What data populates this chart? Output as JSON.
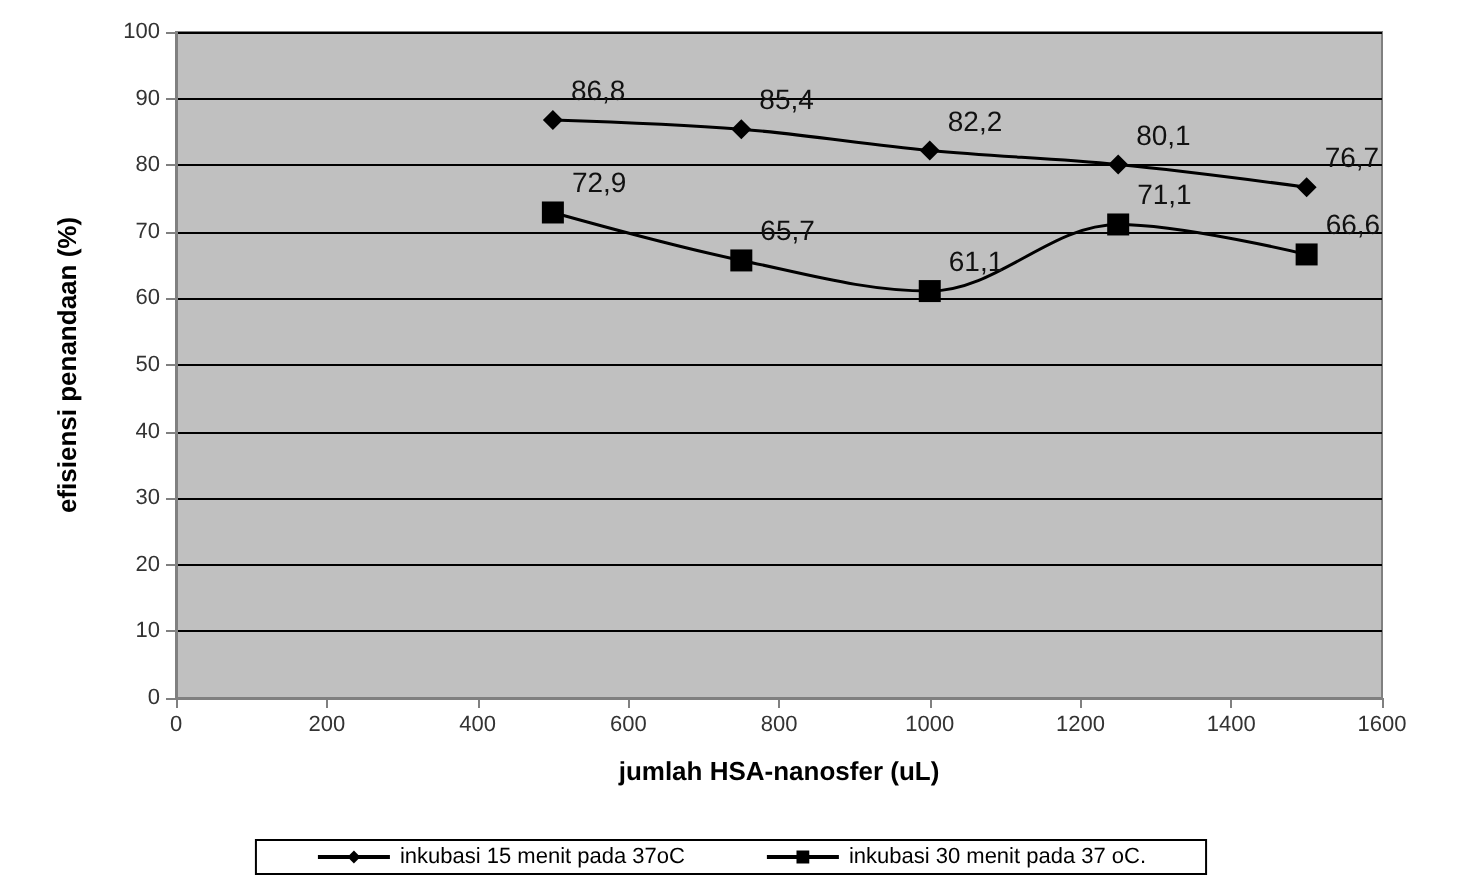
{
  "chart_data": {
    "type": "line",
    "xlabel": "jumlah HSA-nanosfer (uL)",
    "ylabel": "efisiensi penandaan (%)",
    "x": [
      500,
      750,
      1000,
      1250,
      1500
    ],
    "series": [
      {
        "name": "inkubasi 15 menit pada 37oC",
        "color": "#000000",
        "marker": "diamond",
        "values": [
          86.8,
          85.4,
          82.2,
          80.1,
          76.7
        ],
        "value_labels": [
          "86,8",
          "85,4",
          "82,2",
          "80,1",
          "76,7"
        ]
      },
      {
        "name": "inkubasi 30 menit pada 37 oC.",
        "color": "#000000",
        "marker": "square",
        "values": [
          72.9,
          65.7,
          61.1,
          71.1,
          66.6
        ],
        "value_labels": [
          "72,9",
          "65,7",
          "61,1",
          "71,1",
          "66,6"
        ]
      }
    ],
    "xlim": [
      0,
      1600
    ],
    "xticks": [
      0,
      200,
      400,
      600,
      800,
      1000,
      1200,
      1400,
      1600
    ],
    "ylim": [
      0,
      100
    ],
    "yticks": [
      0,
      10,
      20,
      30,
      40,
      50,
      60,
      70,
      80,
      90,
      100
    ],
    "grid": "y",
    "legend": "bottom",
    "line_style": "solid"
  }
}
